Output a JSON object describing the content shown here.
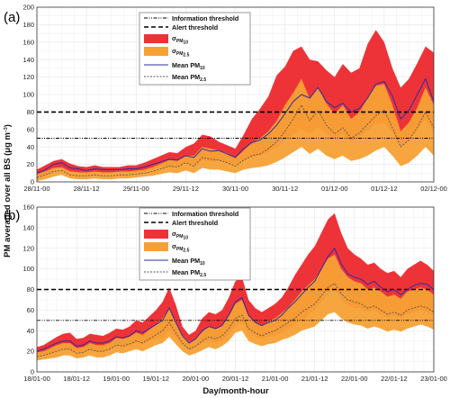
{
  "figure": {
    "ylabel_main": "PM averaged over all BS (",
    "ylabel_mu": "μg m",
    "ylabel_exp": "−3",
    "ylabel_close": ")",
    "xlabel": "Day/month-hour"
  },
  "legend": {
    "info": "Information threshold",
    "alert": "Alert threshold",
    "sigma": "σ",
    "sigma10_sub": "PM",
    "sigma10_subsub": "10",
    "sigma25_sub": "PM",
    "sigma25_subsub": "2.5",
    "mean10": "Mean PM",
    "mean10_sub": "10",
    "mean25": "Mean PM",
    "mean25_sub": "2.5"
  },
  "colors": {
    "band10": "#ee3338",
    "band25": "#f7a135",
    "mean10": "#2b2ea0",
    "mean25": "#555555",
    "threshold": "#000000",
    "grid": "#e4e4e4"
  },
  "chart_data": [
    {
      "type": "area",
      "panel_label": "(a)",
      "ylim": [
        0,
        200
      ],
      "yticks": [
        0,
        20,
        40,
        60,
        80,
        100,
        120,
        140,
        160,
        180,
        200
      ],
      "x_ticks": [
        "28/11-00",
        "28/11-12",
        "29/11-00",
        "29/11-12",
        "30/11-00",
        "30/11-12",
        "01/12-00",
        "01/12-12",
        "02/12-00"
      ],
      "xlim": [
        0,
        96
      ],
      "information_threshold": 50,
      "alert_threshold": 80,
      "x": [
        0,
        2,
        4,
        6,
        8,
        10,
        12,
        14,
        16,
        18,
        20,
        22,
        24,
        26,
        28,
        30,
        32,
        34,
        36,
        38,
        40,
        42,
        44,
        46,
        48,
        50,
        52,
        54,
        56,
        58,
        60,
        62,
        64,
        66,
        68,
        70,
        72,
        74,
        76,
        78,
        80,
        82,
        84,
        86,
        88,
        90,
        92,
        94,
        96
      ],
      "series": [
        {
          "name": "Mean PM10",
          "values": [
            10,
            14,
            20,
            22,
            16,
            15,
            13,
            15,
            14,
            14,
            14,
            15,
            15,
            17,
            20,
            23,
            26,
            25,
            30,
            28,
            38,
            35,
            36,
            32,
            28,
            38,
            45,
            48,
            55,
            65,
            78,
            92,
            100,
            96,
            108,
            92,
            85,
            90,
            80,
            84,
            96,
            112,
            115,
            98,
            72,
            82,
            100,
            118,
            92
          ]
        },
        {
          "name": "σPM10 upper",
          "values": [
            14,
            19,
            24,
            26,
            21,
            18,
            17,
            19,
            17,
            17,
            17,
            19,
            19,
            22,
            26,
            30,
            34,
            33,
            40,
            44,
            54,
            52,
            46,
            42,
            38,
            54,
            72,
            84,
            98,
            122,
            132,
            150,
            155,
            140,
            138,
            128,
            120,
            135,
            125,
            130,
            158,
            174,
            160,
            130,
            108,
            118,
            136,
            155,
            148
          ]
        },
        {
          "name": "σPM10 lower",
          "values": [
            6,
            9,
            14,
            16,
            12,
            11,
            10,
            11,
            10,
            10,
            10,
            11,
            11,
            12,
            14,
            17,
            18,
            18,
            21,
            20,
            25,
            23,
            24,
            22,
            20,
            24,
            28,
            30,
            34,
            40,
            48,
            55,
            60,
            55,
            62,
            55,
            50,
            54,
            46,
            52,
            58,
            66,
            68,
            56,
            40,
            48,
            60,
            72,
            55
          ]
        },
        {
          "name": "Mean PM2.5",
          "values": [
            5,
            8,
            12,
            13,
            8,
            7,
            7,
            8,
            7,
            7,
            8,
            8,
            9,
            10,
            12,
            15,
            18,
            17,
            22,
            18,
            28,
            26,
            25,
            22,
            18,
            25,
            30,
            32,
            38,
            46,
            58,
            72,
            88,
            70,
            82,
            65,
            55,
            62,
            50,
            56,
            66,
            76,
            82,
            62,
            40,
            48,
            62,
            80,
            62
          ]
        },
        {
          "name": "σPM2.5 upper",
          "values": [
            9,
            12,
            16,
            17,
            12,
            11,
            11,
            12,
            11,
            11,
            12,
            12,
            13,
            14,
            17,
            21,
            25,
            24,
            30,
            30,
            40,
            38,
            36,
            33,
            27,
            36,
            45,
            50,
            58,
            70,
            88,
            102,
            118,
            95,
            108,
            90,
            78,
            88,
            72,
            80,
            96,
            110,
            112,
            88,
            58,
            68,
            85,
            108,
            88
          ]
        },
        {
          "name": "σPM2.5 lower",
          "values": [
            1,
            3,
            6,
            8,
            4,
            3,
            3,
            4,
            3,
            3,
            4,
            4,
            5,
            6,
            7,
            9,
            11,
            10,
            13,
            10,
            16,
            14,
            14,
            12,
            10,
            14,
            16,
            17,
            19,
            23,
            28,
            34,
            40,
            32,
            38,
            30,
            26,
            30,
            24,
            26,
            30,
            36,
            40,
            30,
            18,
            22,
            30,
            40,
            30
          ]
        }
      ]
    },
    {
      "type": "area",
      "panel_label": "(b)",
      "ylim": [
        0,
        160
      ],
      "yticks": [
        0,
        20,
        40,
        60,
        80,
        100,
        120,
        140,
        160
      ],
      "x_ticks": [
        "18/01-00",
        "18/01-12",
        "19/01-00",
        "19/01-12",
        "20/01-00",
        "20/01-12",
        "21/01-00",
        "21/01-12",
        "22/01-00",
        "22/01-12",
        "23/01-00"
      ],
      "xlim": [
        0,
        120
      ],
      "information_threshold": 50,
      "alert_threshold": 80,
      "x": [
        0,
        2,
        4,
        6,
        8,
        10,
        12,
        14,
        16,
        18,
        20,
        22,
        24,
        26,
        28,
        30,
        32,
        34,
        36,
        38,
        40,
        42,
        44,
        46,
        48,
        50,
        52,
        54,
        56,
        58,
        60,
        62,
        64,
        66,
        68,
        70,
        72,
        74,
        76,
        78,
        80,
        82,
        84,
        86,
        88,
        90,
        92,
        94,
        96,
        98,
        100,
        102,
        104,
        106,
        108,
        110,
        112,
        114,
        116,
        118,
        120
      ],
      "series": [
        {
          "name": "Mean PM10",
          "values": [
            20,
            22,
            25,
            28,
            30,
            30,
            25,
            26,
            30,
            28,
            28,
            30,
            34,
            33,
            35,
            40,
            38,
            42,
            46,
            50,
            62,
            48,
            35,
            28,
            32,
            40,
            44,
            42,
            45,
            55,
            68,
            72,
            55,
            48,
            45,
            48,
            50,
            55,
            62,
            68,
            75,
            82,
            88,
            100,
            112,
            120,
            105,
            95,
            92,
            90,
            85,
            88,
            82,
            78,
            80,
            75,
            80,
            84,
            86,
            85,
            80
          ]
        },
        {
          "name": "σPM10 upper",
          "values": [
            24,
            26,
            30,
            34,
            37,
            38,
            32,
            33,
            37,
            36,
            35,
            38,
            42,
            41,
            44,
            50,
            48,
            54,
            60,
            68,
            82,
            65,
            44,
            36,
            40,
            52,
            58,
            56,
            60,
            72,
            88,
            92,
            70,
            62,
            58,
            62,
            66,
            72,
            82,
            94,
            104,
            114,
            122,
            135,
            148,
            154,
            135,
            120,
            114,
            110,
            104,
            106,
            100,
            96,
            98,
            92,
            100,
            104,
            108,
            104,
            98
          ]
        },
        {
          "name": "σPM10 lower",
          "values": [
            16,
            17,
            18,
            20,
            22,
            22,
            18,
            19,
            22,
            20,
            20,
            22,
            25,
            24,
            26,
            28,
            27,
            30,
            32,
            34,
            40,
            33,
            26,
            21,
            24,
            28,
            30,
            28,
            30,
            36,
            45,
            48,
            38,
            34,
            32,
            34,
            35,
            38,
            42,
            46,
            50,
            55,
            60,
            68,
            76,
            80,
            70,
            64,
            62,
            62,
            58,
            60,
            56,
            52,
            55,
            52,
            56,
            58,
            60,
            58,
            55
          ]
        },
        {
          "name": "Mean PM2.5",
          "values": [
            15,
            16,
            18,
            20,
            22,
            22,
            18,
            19,
            22,
            20,
            20,
            22,
            26,
            25,
            27,
            30,
            28,
            32,
            36,
            40,
            48,
            38,
            28,
            22,
            25,
            30,
            34,
            32,
            35,
            42,
            52,
            55,
            42,
            38,
            35,
            38,
            40,
            44,
            48,
            52,
            58,
            62,
            66,
            74,
            82,
            86,
            76,
            70,
            68,
            66,
            62,
            64,
            60,
            56,
            58,
            55,
            60,
            62,
            64,
            62,
            58
          ]
        },
        {
          "name": "σPM2.5 upper",
          "values": [
            19,
            20,
            23,
            26,
            28,
            28,
            23,
            24,
            28,
            26,
            26,
            28,
            33,
            32,
            34,
            38,
            36,
            41,
            46,
            52,
            62,
            49,
            36,
            29,
            32,
            39,
            44,
            42,
            45,
            54,
            66,
            70,
            54,
            49,
            45,
            49,
            52,
            57,
            63,
            70,
            78,
            84,
            90,
            100,
            110,
            114,
            100,
            92,
            88,
            86,
            80,
            82,
            78,
            73,
            75,
            71,
            78,
            80,
            82,
            80,
            75
          ]
        },
        {
          "name": "σPM2.5 lower",
          "values": [
            11,
            12,
            13,
            14,
            16,
            16,
            13,
            14,
            16,
            14,
            14,
            16,
            19,
            18,
            20,
            22,
            20,
            23,
            26,
            28,
            34,
            27,
            20,
            16,
            18,
            21,
            24,
            22,
            25,
            30,
            38,
            40,
            30,
            27,
            25,
            27,
            28,
            31,
            33,
            36,
            40,
            42,
            44,
            50,
            56,
            58,
            52,
            48,
            46,
            45,
            42,
            44,
            42,
            39,
            41,
            39,
            42,
            44,
            46,
            44,
            41
          ]
        }
      ]
    }
  ]
}
